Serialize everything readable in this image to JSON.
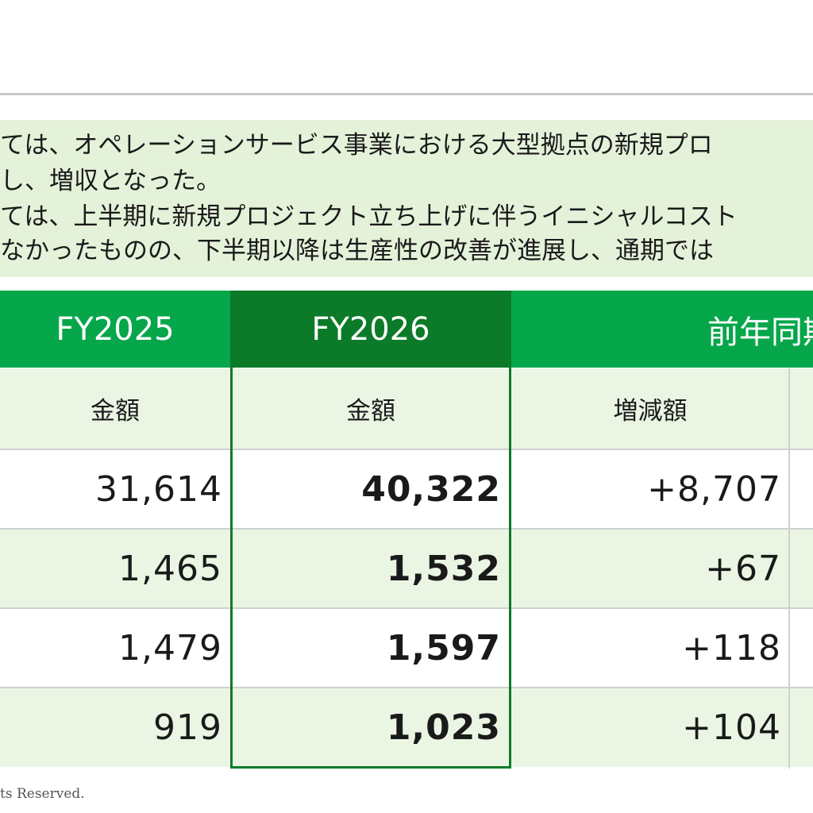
{
  "summary": {
    "line1": "ては、オペレーションサービス事業における大型拠点の新規プロ",
    "line2": "し、増収となった。",
    "line3": "ては、上半期に新規プロジェクト立ち上げに伴うイニシャルコスト",
    "line4": "なかったものの、下半期以降は生産性の改善が進展し、通期では"
  },
  "table": {
    "headers": {
      "fy2025": "FY2025",
      "fy2026": "FY2026",
      "yoy": "前年同期"
    },
    "subheaders": {
      "fy2025": "金額",
      "fy2026": "金額",
      "yoy": "増減額"
    },
    "rows": [
      {
        "fy2025": "31,614",
        "fy2026": "40,322",
        "change": "+8,707"
      },
      {
        "fy2025": "1,465",
        "fy2026": "1,532",
        "change": "+67"
      },
      {
        "fy2025": "1,479",
        "fy2026": "1,597",
        "change": "+118"
      },
      {
        "fy2025": "919",
        "fy2026": "1,023",
        "change": "+104"
      }
    ]
  },
  "footer": {
    "copyright": "ts Reserved."
  },
  "colors": {
    "header_green": "#06a64a",
    "header_dark_green": "#0b7a29",
    "band_light_green": "#eaf6e3",
    "summary_bg": "#e5f2da"
  }
}
